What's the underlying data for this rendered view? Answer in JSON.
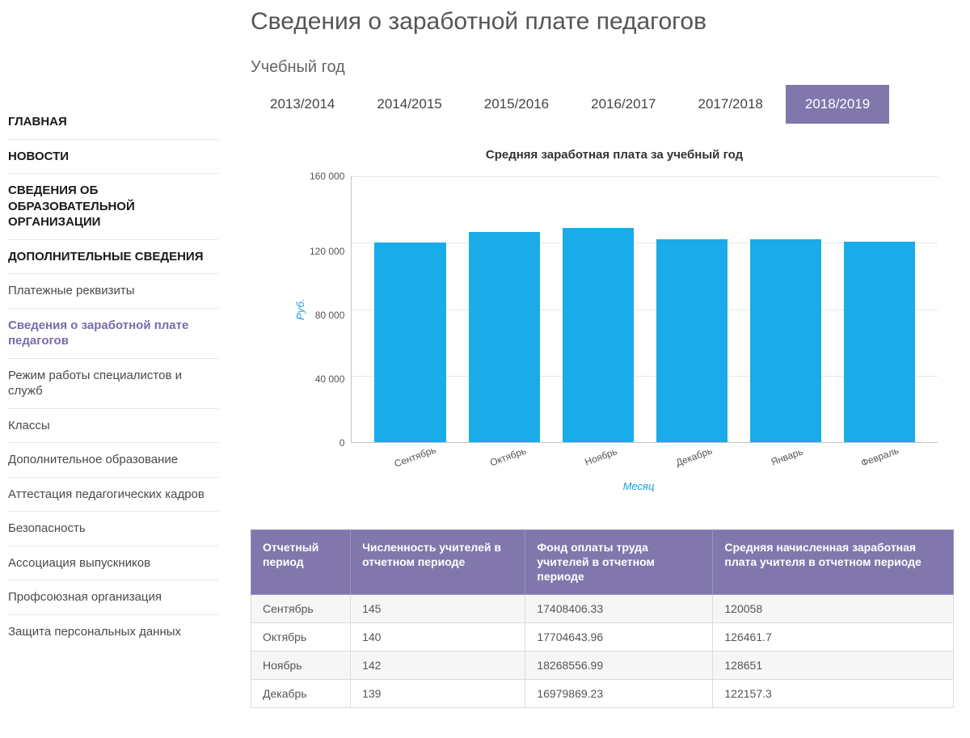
{
  "page": {
    "title": "Сведения о заработной плате педагогов",
    "filter_label": "Учебный год"
  },
  "sidebar": {
    "items": [
      {
        "label": "ГЛАВНАЯ",
        "bold": true,
        "active": false
      },
      {
        "label": "НОВОСТИ",
        "bold": true,
        "active": false
      },
      {
        "label": "СВЕДЕНИЯ ОБ ОБРАЗОВАТЕЛЬНОЙ ОРГАНИЗАЦИИ",
        "bold": true,
        "active": false
      },
      {
        "label": "ДОПОЛНИТЕЛЬНЫЕ СВЕДЕНИЯ",
        "bold": true,
        "active": false
      },
      {
        "label": "Платежные реквизиты",
        "bold": false,
        "active": false
      },
      {
        "label": "Сведения о заработной плате педагогов",
        "bold": false,
        "active": true
      },
      {
        "label": "Режим работы специалистов и служб",
        "bold": false,
        "active": false
      },
      {
        "label": "Классы",
        "bold": false,
        "active": false
      },
      {
        "label": "Дополнительное образование",
        "bold": false,
        "active": false
      },
      {
        "label": "Аттестация педагогических кадров",
        "bold": false,
        "active": false
      },
      {
        "label": "Безопасность",
        "bold": false,
        "active": false
      },
      {
        "label": "Ассоциация выпускников",
        "bold": false,
        "active": false
      },
      {
        "label": "Профсоюзная организация",
        "bold": false,
        "active": false
      },
      {
        "label": "Защита персональных данных",
        "bold": false,
        "active": false
      }
    ]
  },
  "year_tabs": [
    {
      "label": "2013/2014",
      "active": false
    },
    {
      "label": "2014/2015",
      "active": false
    },
    {
      "label": "2015/2016",
      "active": false
    },
    {
      "label": "2016/2017",
      "active": false
    },
    {
      "label": "2017/2018",
      "active": false
    },
    {
      "label": "2018/2019",
      "active": true
    }
  ],
  "chart": {
    "type": "bar",
    "title": "Средняя заработная плата за учебный год",
    "y_axis_label": "Руб.",
    "x_axis_label": "Месяц",
    "ylim": [
      0,
      160000
    ],
    "y_ticks": [
      "160 000",
      "120 000",
      "80 000",
      "40 000",
      "0"
    ],
    "categories": [
      "Сентябрь",
      "Октябрь",
      "Ноябрь",
      "Декабрь",
      "Январь",
      "Февраль"
    ],
    "values": [
      120058,
      126462,
      128651,
      122157,
      122000,
      120500
    ],
    "bar_color": "#1aace8",
    "grid_color": "#e8e8e8",
    "axis_label_color": "#1a9de0",
    "tick_color": "#555555",
    "background_color": "#ffffff"
  },
  "table": {
    "header_bg": "#8177ad",
    "header_fg": "#ffffff",
    "columns": [
      "Отчетный период",
      "Численность учителей в отчетном периоде",
      "Фонд оплаты труда учителей в отчетном периоде",
      "Средняя начисленная заработная плата учителя в отчетном периоде"
    ],
    "rows": [
      [
        "Сентябрь",
        "145",
        "17408406.33",
        "120058"
      ],
      [
        "Октябрь",
        "140",
        "17704643.96",
        "126461.7"
      ],
      [
        "Ноябрь",
        "142",
        "18268556.99",
        "128651"
      ],
      [
        "Декабрь",
        "139",
        "16979869.23",
        "122157.3"
      ]
    ]
  }
}
